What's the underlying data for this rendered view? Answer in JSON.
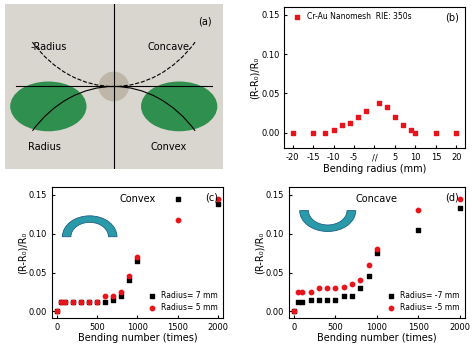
{
  "photo": {
    "panel_label": "(a)",
    "labels": {
      "upper_left": "-Radius",
      "upper_right": "Concave",
      "lower_left": "Radius",
      "lower_right": "Convex"
    }
  },
  "chart_data": [
    {
      "type": "scatter",
      "annotations": [
        "(b)"
      ],
      "x_label": "Bending radius (mm)",
      "y_label": "(R-R₀)/R₀",
      "x": [
        -20,
        -15,
        -12,
        -10,
        -8,
        -6,
        -4,
        -2,
        1,
        3,
        5,
        7,
        9,
        10,
        15,
        20
      ],
      "series": [
        {
          "name": "Cr-Au Nanomesh  RIE: 350s",
          "color": "#e8141c",
          "marker": "square",
          "values": [
            0,
            0,
            0,
            0.003,
            0.01,
            0.012,
            0.02,
            0.028,
            0.038,
            0.033,
            0.02,
            0.01,
            0.003,
            0,
            0,
            0
          ]
        }
      ],
      "xlim": [
        -22,
        22
      ],
      "xticks": [
        -20,
        -15,
        -10,
        -5,
        {
          "value": 0,
          "label": "//"
        },
        5,
        10,
        15,
        20
      ],
      "ylim": [
        -0.02,
        0.16
      ],
      "yticks": [
        {
          "value": 0,
          "label": "0.00"
        },
        {
          "value": 0.05,
          "label": "0.05"
        },
        {
          "value": 0.1,
          "label": "0.10"
        },
        {
          "value": 0.15,
          "label": "0.15"
        }
      ],
      "legend": "upper left"
    },
    {
      "type": "scatter",
      "annotations": [
        "(c)",
        "Convex"
      ],
      "x_label": "Bending number (times)",
      "y_label": "(R-R₀)/R₀",
      "x": [
        0,
        50,
        100,
        200,
        300,
        400,
        500,
        600,
        700,
        800,
        900,
        1000,
        1500,
        2000
      ],
      "series": [
        {
          "name": "Radius= 7 mm",
          "color": "#000000",
          "marker": "square",
          "values": [
            0,
            0.012,
            0.012,
            0.012,
            0.012,
            0.012,
            0.012,
            0.012,
            0.015,
            0.02,
            0.04,
            0.065,
            0.145,
            0.138
          ]
        },
        {
          "name": "Radius= 5 mm",
          "color": "#e8141c",
          "marker": "circle",
          "values": [
            0,
            0.012,
            0.012,
            0.012,
            0.012,
            0.012,
            0.012,
            0.02,
            0.02,
            0.025,
            0.045,
            0.07,
            0.118,
            0.145
          ]
        }
      ],
      "xlim": [
        -60,
        2060
      ],
      "xticks": [
        0,
        500,
        1000,
        1500,
        2000
      ],
      "ylim": [
        -0.008,
        0.16
      ],
      "yticks": [
        {
          "value": 0,
          "label": "0.00"
        },
        {
          "value": 0.05,
          "label": "0.05"
        },
        {
          "value": 0.1,
          "label": "0.10"
        },
        {
          "value": 0.15,
          "label": "0.15"
        }
      ],
      "legend": "lower right"
    },
    {
      "type": "scatter",
      "annotations": [
        "(d)",
        "Concave"
      ],
      "x_label": "Bending number (times)",
      "y_label": "(R-R₀)/R₀",
      "x": [
        0,
        50,
        100,
        200,
        300,
        400,
        500,
        600,
        700,
        800,
        900,
        1000,
        1500,
        2000
      ],
      "series": [
        {
          "name": "Radius= -7 mm",
          "color": "#000000",
          "marker": "square",
          "values": [
            0,
            0.012,
            0.012,
            0.015,
            0.015,
            0.015,
            0.015,
            0.02,
            0.02,
            0.03,
            0.045,
            0.075,
            0.105,
            0.133
          ]
        },
        {
          "name": "Radius= -5 mm",
          "color": "#e8141c",
          "marker": "circle",
          "values": [
            0,
            0.025,
            0.025,
            0.025,
            0.03,
            0.03,
            0.03,
            0.032,
            0.035,
            0.04,
            0.06,
            0.08,
            0.13,
            0.145
          ]
        }
      ],
      "xlim": [
        -60,
        2060
      ],
      "xticks": [
        0,
        500,
        1000,
        1500,
        2000
      ],
      "ylim": [
        -0.008,
        0.16
      ],
      "yticks": [
        {
          "value": 0,
          "label": "0.00"
        },
        {
          "value": 0.05,
          "label": "0.05"
        },
        {
          "value": 0.1,
          "label": "0.10"
        },
        {
          "value": 0.15,
          "label": "0.15"
        }
      ],
      "legend": "lower right"
    }
  ]
}
